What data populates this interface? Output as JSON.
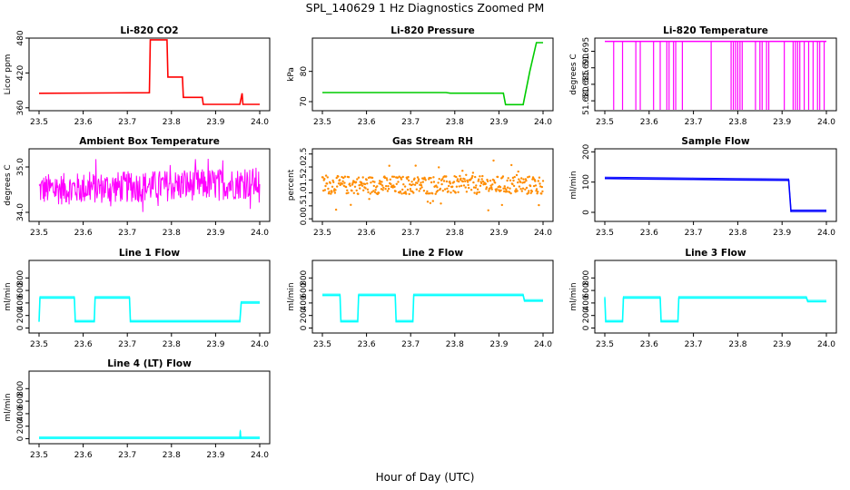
{
  "figure": {
    "title": "SPL_140629  1 Hz Diagnostics Zoomed PM",
    "xlabel": "Hour of Day (UTC)"
  },
  "chart_data": [
    {
      "type": "line",
      "title": "Li-820 CO2",
      "ylabel": "Licor ppm",
      "color": "#ff0000",
      "xlim": [
        23.5,
        24.0
      ],
      "ylim": [
        355,
        480
      ],
      "xticks": [
        "23.5",
        "23.6",
        "23.7",
        "23.8",
        "23.9",
        "24.0"
      ],
      "yticks": [
        "360",
        "420",
        "480"
      ],
      "x": [
        23.5,
        23.75,
        23.752,
        23.79,
        23.792,
        23.825,
        23.827,
        23.87,
        23.872,
        23.955,
        23.96,
        23.962,
        24.0
      ],
      "y": [
        385,
        386,
        477,
        477,
        413,
        413,
        378,
        378,
        366,
        366,
        385,
        366,
        366
      ]
    },
    {
      "type": "line",
      "title": "Li-820 Pressure",
      "ylabel": "kPa",
      "color": "#00cc00",
      "xlim": [
        23.5,
        24.0
      ],
      "ylim": [
        67,
        91
      ],
      "xticks": [
        "23.5",
        "23.6",
        "23.7",
        "23.8",
        "23.9",
        "24.0"
      ],
      "yticks": [
        "70",
        "80"
      ],
      "x": [
        23.5,
        23.78,
        23.79,
        23.91,
        23.915,
        23.955,
        23.97,
        23.985,
        24.0
      ],
      "y": [
        73,
        73,
        72.8,
        72.8,
        69,
        69,
        80,
        89.5,
        89.5
      ]
    },
    {
      "type": "line",
      "title": "Li-820 Temperature",
      "ylabel": "degrees C",
      "color": "#ff00ff",
      "xlim": [
        23.5,
        24.0
      ],
      "ylim": [
        51.677,
        51.699
      ],
      "xticks": [
        "23.5",
        "23.6",
        "23.7",
        "23.8",
        "23.9",
        "24.0"
      ],
      "yticks": [
        "51.680",
        "51.685",
        "51.690",
        "51.695"
      ],
      "baseline": 51.698,
      "low": 51.677,
      "x": [
        23.52,
        23.54,
        23.57,
        23.58,
        23.61,
        23.625,
        23.64,
        23.645,
        23.655,
        23.66,
        23.675,
        23.74,
        23.785,
        23.79,
        23.795,
        23.8,
        23.805,
        23.81,
        23.84,
        23.85,
        23.855,
        23.865,
        23.87,
        23.905,
        23.925,
        23.93,
        23.935,
        23.94,
        23.95,
        23.96,
        23.97,
        23.98,
        23.985,
        23.995
      ]
    },
    {
      "type": "line",
      "title": "Ambient Box Temperature",
      "ylabel": "degrees C",
      "color": "#ff00ff",
      "xlim": [
        23.5,
        24.0
      ],
      "ylim": [
        33.8,
        35.4
      ],
      "xticks": [
        "23.5",
        "23.6",
        "23.7",
        "23.8",
        "23.9",
        "24.0"
      ],
      "yticks": [
        "34.0",
        "35.0"
      ],
      "center": 34.5,
      "spread": 0.35
    },
    {
      "type": "scatter",
      "title": "Gas Stream RH",
      "ylabel": "percent",
      "color": "#ff8c00",
      "xlim": [
        23.5,
        24.0
      ],
      "ylim": [
        -0.1,
        2.7
      ],
      "xticks": [
        "23.5",
        "23.6",
        "23.7",
        "23.8",
        "23.9",
        "24.0"
      ],
      "yticks": [
        "0.0",
        "0.5",
        "1.0",
        "1.5",
        "2.0",
        "2.5"
      ],
      "center": 1.3,
      "spread": 0.35
    },
    {
      "type": "line",
      "title": "Sample Flow",
      "ylabel": "ml/min",
      "color": "#0000ff",
      "xlim": [
        23.5,
        24.0
      ],
      "ylim": [
        -30,
        210
      ],
      "xticks": [
        "23.5",
        "23.6",
        "23.7",
        "23.8",
        "23.9",
        "24.0"
      ],
      "yticks": [
        "0",
        "100",
        "200"
      ],
      "x": [
        23.5,
        23.6,
        23.7,
        23.8,
        23.915,
        23.92,
        24.0
      ],
      "y": [
        112,
        110,
        109,
        107,
        106,
        3,
        3
      ]
    },
    {
      "type": "line",
      "title": "Line 1 Flow",
      "ylabel": "ml/min",
      "color": "#00ffff",
      "xlim": [
        23.5,
        24.0
      ],
      "ylim": [
        -80,
        1080
      ],
      "xticks": [
        "23.5",
        "23.6",
        "23.7",
        "23.8",
        "23.9",
        "24.0"
      ],
      "yticks": [
        "0",
        "200",
        "400",
        "600",
        "800"
      ],
      "x": [
        23.5,
        23.502,
        23.58,
        23.582,
        23.625,
        23.627,
        23.705,
        23.707,
        23.955,
        23.958,
        24.0
      ],
      "y": [
        100,
        480,
        480,
        100,
        100,
        480,
        480,
        100,
        100,
        400,
        400
      ]
    },
    {
      "type": "line",
      "title": "Line 2 Flow",
      "ylabel": "ml/min",
      "color": "#00ffff",
      "xlim": [
        23.5,
        24.0
      ],
      "ylim": [
        -80,
        1080
      ],
      "xticks": [
        "23.5",
        "23.6",
        "23.7",
        "23.8",
        "23.9",
        "24.0"
      ],
      "yticks": [
        "0",
        "200",
        "400",
        "600",
        "800"
      ],
      "x": [
        23.5,
        23.54,
        23.542,
        23.58,
        23.582,
        23.665,
        23.667,
        23.705,
        23.707,
        23.955,
        23.958,
        24.0
      ],
      "y": [
        520,
        520,
        100,
        100,
        520,
        520,
        100,
        100,
        520,
        520,
        430,
        430
      ]
    },
    {
      "type": "line",
      "title": "Line 3 Flow",
      "ylabel": "ml/min",
      "color": "#00ffff",
      "xlim": [
        23.5,
        24.0
      ],
      "ylim": [
        -80,
        1080
      ],
      "xticks": [
        "23.5",
        "23.6",
        "23.7",
        "23.8",
        "23.9",
        "24.0"
      ],
      "yticks": [
        "0",
        "200",
        "400",
        "600",
        "800"
      ],
      "x": [
        23.5,
        23.502,
        23.54,
        23.542,
        23.625,
        23.627,
        23.665,
        23.667,
        23.955,
        23.958,
        24.0
      ],
      "y": [
        480,
        100,
        100,
        480,
        480,
        100,
        100,
        480,
        480,
        420,
        420
      ]
    },
    {
      "type": "line",
      "title": "Line 4 (LT) Flow",
      "ylabel": "ml/min",
      "color": "#00ffff",
      "xlim": [
        23.5,
        24.0
      ],
      "ylim": [
        -80,
        1080
      ],
      "xticks": [
        "23.5",
        "23.6",
        "23.7",
        "23.8",
        "23.9",
        "24.0"
      ],
      "yticks": [
        "0",
        "200",
        "400",
        "600",
        "800"
      ],
      "x": [
        23.5,
        23.955,
        23.956,
        23.957,
        24.0
      ],
      "y": [
        5,
        5,
        120,
        5,
        5
      ]
    }
  ]
}
